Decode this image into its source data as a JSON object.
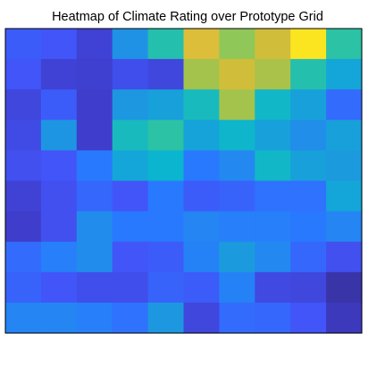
{
  "chart_data": {
    "type": "heatmap",
    "title": "Heatmap of Climate Rating over Prototype Grid",
    "xlabel": "",
    "ylabel": "",
    "rows": 10,
    "cols": 10,
    "colormap": "parula",
    "clim": [
      0,
      100
    ],
    "axis_ticks": "none",
    "colorbar": false,
    "values": [
      [
        22,
        20,
        12,
        38,
        58,
        84,
        72,
        82,
        96,
        60
      ],
      [
        20,
        12,
        11,
        17,
        14,
        75,
        82,
        76,
        58,
        45
      ],
      [
        14,
        22,
        10,
        40,
        43,
        54,
        75,
        52,
        43,
        26
      ],
      [
        16,
        39,
        10,
        54,
        60,
        44,
        51,
        43,
        37,
        43
      ],
      [
        18,
        20,
        30,
        45,
        50,
        30,
        35,
        52,
        43,
        41
      ],
      [
        12,
        18,
        25,
        20,
        30,
        22,
        24,
        28,
        28,
        45
      ],
      [
        10,
        18,
        36,
        30,
        30,
        34,
        32,
        32,
        30,
        34
      ],
      [
        26,
        32,
        36,
        20,
        22,
        33,
        41,
        35,
        25,
        18
      ],
      [
        24,
        20,
        17,
        17,
        24,
        22,
        33,
        15,
        14,
        5
      ],
      [
        34,
        34,
        32,
        28,
        40,
        14,
        26,
        25,
        20,
        8
      ]
    ]
  }
}
